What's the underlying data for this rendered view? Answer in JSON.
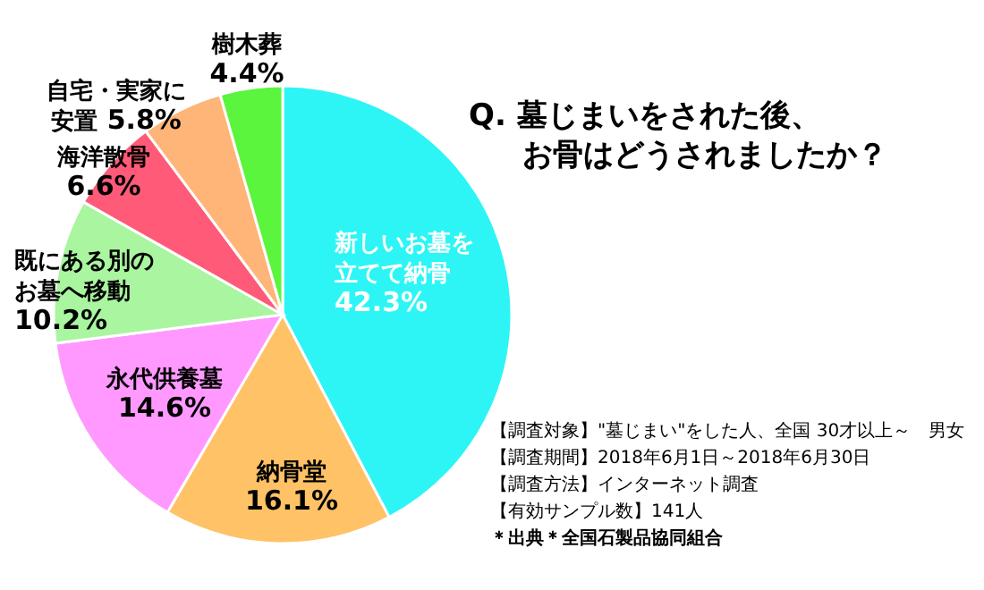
{
  "chart_data": {
    "type": "pie",
    "title": "Q. 墓じまいをされた後、お骨はどうされましたか？",
    "categories": [
      "新しいお墓を立てて納骨",
      "納骨堂",
      "永代供養墓",
      "既にある別のお墓へ移動",
      "海洋散骨",
      "自宅・実家に安置",
      "樹木葬"
    ],
    "values": [
      42.3,
      16.1,
      14.6,
      10.2,
      6.6,
      5.8,
      4.4
    ],
    "value_labels": [
      "42.3%",
      "16.1%",
      "14.6%",
      "10.2%",
      "6.6%",
      "5.8%",
      "4.4%"
    ],
    "colors": [
      "#2ef5f5",
      "#ffc266",
      "#ff99ff",
      "#aaf5a0",
      "#ff5a78",
      "#ffb478",
      "#5af53c"
    ],
    "annotations": [
      "【調査対象】\"墓じまい\"をした人、全国 30才以上～　男女",
      "【調査期間】2018年6月1日～2018年6月30日",
      "【調査方法】インターネット調査",
      "【有効サンプル数】141人",
      "＊出典＊全国石製品協同組合"
    ]
  }
}
